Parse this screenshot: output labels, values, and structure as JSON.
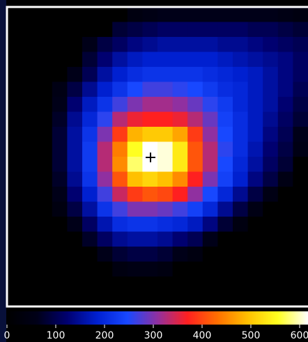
{
  "chart_data": {
    "type": "heatmap",
    "colormap": [
      "#000000",
      "#000018",
      "#000070",
      "#0020d0",
      "#1848ff",
      "#9030a0",
      "#ff2020",
      "#ff7000",
      "#ffc000",
      "#ffff20",
      "#ffffff"
    ],
    "zlim": [
      0,
      600
    ],
    "zticks": [
      0,
      100,
      200,
      300,
      400,
      500,
      600
    ],
    "values": [
      [
        0,
        0,
        0,
        0,
        0,
        0,
        0,
        0,
        40,
        50,
        60,
        60,
        60,
        60,
        60,
        60,
        60,
        60,
        50,
        40
      ],
      [
        0,
        0,
        0,
        0,
        0,
        0,
        0,
        80,
        90,
        100,
        110,
        110,
        110,
        110,
        110,
        110,
        100,
        100,
        90,
        80
      ],
      [
        0,
        0,
        0,
        0,
        0,
        60,
        90,
        110,
        130,
        140,
        150,
        150,
        150,
        150,
        140,
        140,
        130,
        120,
        110,
        100
      ],
      [
        0,
        0,
        0,
        0,
        0,
        80,
        120,
        150,
        170,
        180,
        180,
        180,
        180,
        180,
        170,
        160,
        150,
        140,
        130,
        110
      ],
      [
        0,
        0,
        0,
        0,
        60,
        100,
        150,
        180,
        200,
        210,
        210,
        210,
        210,
        200,
        190,
        180,
        170,
        150,
        130,
        110
      ],
      [
        0,
        0,
        0,
        50,
        90,
        140,
        180,
        210,
        240,
        260,
        260,
        250,
        240,
        220,
        200,
        190,
        170,
        150,
        130,
        100
      ],
      [
        0,
        0,
        0,
        60,
        120,
        170,
        210,
        260,
        290,
        310,
        310,
        300,
        280,
        250,
        220,
        190,
        170,
        150,
        120,
        90
      ],
      [
        0,
        0,
        0,
        70,
        140,
        190,
        250,
        320,
        350,
        360,
        360,
        350,
        320,
        280,
        230,
        200,
        170,
        140,
        110,
        80
      ],
      [
        0,
        0,
        0,
        80,
        150,
        210,
        290,
        380,
        470,
        490,
        490,
        460,
        380,
        300,
        240,
        200,
        170,
        130,
        100,
        60
      ],
      [
        0,
        0,
        0,
        80,
        150,
        220,
        320,
        430,
        540,
        600,
        590,
        520,
        400,
        320,
        250,
        200,
        160,
        120,
        90,
        50
      ],
      [
        0,
        0,
        0,
        80,
        150,
        220,
        320,
        440,
        560,
        600,
        590,
        520,
        400,
        320,
        240,
        190,
        150,
        110,
        80,
        0
      ],
      [
        0,
        0,
        0,
        70,
        140,
        210,
        300,
        400,
        480,
        500,
        480,
        440,
        360,
        290,
        230,
        180,
        130,
        90,
        50,
        0
      ],
      [
        0,
        0,
        0,
        60,
        120,
        180,
        260,
        330,
        380,
        400,
        390,
        360,
        300,
        240,
        190,
        140,
        90,
        50,
        0,
        0
      ],
      [
        0,
        0,
        0,
        40,
        90,
        150,
        210,
        260,
        290,
        290,
        280,
        260,
        230,
        190,
        140,
        90,
        50,
        0,
        0,
        0
      ],
      [
        0,
        0,
        0,
        0,
        60,
        110,
        160,
        200,
        210,
        210,
        200,
        190,
        170,
        130,
        80,
        40,
        0,
        0,
        0,
        0
      ],
      [
        0,
        0,
        0,
        0,
        0,
        70,
        110,
        140,
        150,
        150,
        140,
        120,
        100,
        60,
        0,
        0,
        0,
        0,
        0,
        0
      ],
      [
        0,
        0,
        0,
        0,
        0,
        0,
        60,
        80,
        90,
        90,
        80,
        60,
        40,
        0,
        0,
        0,
        0,
        0,
        0,
        0
      ],
      [
        0,
        0,
        0,
        0,
        0,
        0,
        0,
        40,
        50,
        50,
        40,
        0,
        0,
        0,
        0,
        0,
        0,
        0,
        0,
        0
      ],
      [
        0,
        0,
        0,
        0,
        0,
        0,
        0,
        0,
        0,
        0,
        0,
        0,
        0,
        0,
        0,
        0,
        0,
        0,
        0,
        0
      ],
      [
        0,
        0,
        0,
        0,
        0,
        0,
        0,
        0,
        0,
        0,
        0,
        0,
        0,
        0,
        0,
        0,
        0,
        0,
        0,
        0
      ]
    ]
  }
}
